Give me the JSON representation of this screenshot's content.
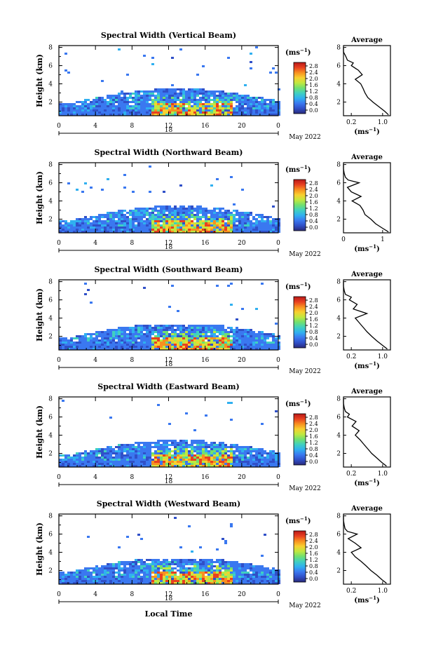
{
  "colorbar": {
    "unit_label": "(ms",
    "unit_sup": "−1",
    "unit_close": ")",
    "ticks": [
      "2.8",
      "2.4",
      "2.0",
      "1.6",
      "1.2",
      "0.8",
      "0.4",
      "0.0"
    ]
  },
  "shared": {
    "ylabel": "Height (km)",
    "yticks": [
      "8",
      "6",
      "4",
      "2"
    ],
    "xticks": [
      "0",
      "4",
      "8",
      "12",
      "16",
      "20",
      "0"
    ],
    "date_day": "18",
    "month_year": "May 2022",
    "avg_title": "Average",
    "avg_unit": "(ms",
    "avg_unit_sup": "−1",
    "avg_unit_close": ")",
    "avg_yticks": [
      "8",
      "6",
      "4",
      "2"
    ],
    "xlabel": "Local Time"
  },
  "colors": {
    "scale": [
      "#2a2a7a",
      "#3050c8",
      "#3a78f0",
      "#30b0f0",
      "#40d0c0",
      "#70e070",
      "#c0e840",
      "#f8d030",
      "#f89020",
      "#e84020",
      "#b81818"
    ]
  },
  "chart_data": [
    {
      "type": "heatmap",
      "title": "Spectral Width (Vertical Beam)",
      "cloud_top_km": 3.6,
      "avg_xticks": [
        "0.2",
        "1.0"
      ],
      "avg_xlim": [
        0,
        1.2
      ],
      "average_profile": {
        "height_km": [
          0.6,
          1.0,
          1.5,
          2.0,
          2.5,
          3.0,
          3.5,
          4.0,
          4.5,
          5.0,
          5.5,
          6.0,
          6.3,
          6.6,
          7.0,
          7.5,
          8.0
        ],
        "width": [
          1.15,
          1.05,
          0.9,
          0.75,
          0.62,
          0.55,
          0.5,
          0.44,
          0.3,
          0.48,
          0.38,
          0.2,
          0.25,
          0.1,
          0.06,
          0.0,
          0.0
        ]
      }
    },
    {
      "type": "heatmap",
      "title": "Spectral Width (Northward Beam)",
      "cloud_top_km": 3.8,
      "avg_xticks": [
        "0",
        "1"
      ],
      "avg_xlim": [
        0,
        1.2
      ],
      "average_profile": {
        "height_km": [
          0.6,
          1.0,
          1.5,
          2.0,
          2.5,
          3.0,
          3.5,
          4.0,
          4.5,
          5.0,
          5.5,
          6.0,
          6.3,
          6.6,
          7.0,
          7.5,
          8.0
        ],
        "width": [
          1.15,
          1.0,
          0.82,
          0.7,
          0.55,
          0.5,
          0.42,
          0.22,
          0.45,
          0.2,
          0.1,
          0.4,
          0.12,
          0.05,
          0.02,
          0.0,
          0.0
        ]
      }
    },
    {
      "type": "heatmap",
      "title": "Spectral Width (Southward Beam)",
      "cloud_top_km": 3.5,
      "avg_xticks": [
        "0.2",
        "1.0"
      ],
      "avg_xlim": [
        0,
        1.2
      ],
      "average_profile": {
        "height_km": [
          0.6,
          1.0,
          1.5,
          2.0,
          2.5,
          3.0,
          3.5,
          4.0,
          4.5,
          5.0,
          5.5,
          6.0,
          6.3,
          6.6,
          7.0,
          7.5,
          8.0
        ],
        "width": [
          1.12,
          1.0,
          0.85,
          0.72,
          0.6,
          0.5,
          0.4,
          0.3,
          0.6,
          0.25,
          0.35,
          0.15,
          0.2,
          0.05,
          0.02,
          0.0,
          0.0
        ]
      }
    },
    {
      "type": "heatmap",
      "title": "Spectral Width (Eastward Beam)",
      "cloud_top_km": 3.6,
      "avg_xticks": [
        "0.2",
        "1.0"
      ],
      "avg_xlim": [
        0,
        1.2
      ],
      "average_profile": {
        "height_km": [
          0.6,
          1.0,
          1.5,
          2.0,
          2.5,
          3.0,
          3.5,
          4.0,
          4.5,
          5.0,
          5.5,
          6.0,
          6.3,
          6.6,
          7.0,
          7.5,
          8.0
        ],
        "width": [
          1.1,
          0.98,
          0.85,
          0.72,
          0.62,
          0.52,
          0.42,
          0.3,
          0.4,
          0.22,
          0.32,
          0.1,
          0.15,
          0.05,
          0.02,
          0.0,
          0.0
        ]
      }
    },
    {
      "type": "heatmap",
      "title": "Spectral Width (Westward Beam)",
      "cloud_top_km": 3.4,
      "avg_xticks": [
        "0.2",
        "1.0"
      ],
      "avg_xlim": [
        0,
        1.2
      ],
      "average_profile": {
        "height_km": [
          0.6,
          1.0,
          1.5,
          2.0,
          2.5,
          3.0,
          3.5,
          4.0,
          4.5,
          5.0,
          5.5,
          6.0,
          6.3,
          6.6,
          7.0,
          7.5,
          8.0
        ],
        "width": [
          1.1,
          0.98,
          0.85,
          0.7,
          0.58,
          0.45,
          0.3,
          0.2,
          0.45,
          0.3,
          0.12,
          0.35,
          0.1,
          0.04,
          0.02,
          0.0,
          0.0
        ]
      }
    }
  ]
}
